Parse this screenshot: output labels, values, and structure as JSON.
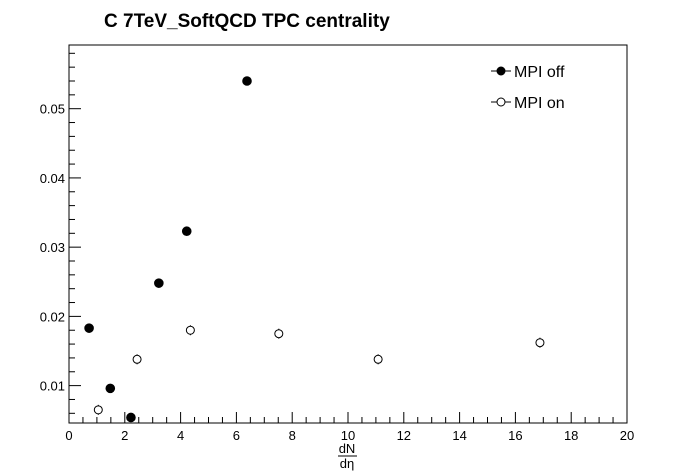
{
  "chart_data": {
    "type": "scatter",
    "title": "C 7TeV_SoftQCD TPC centrality",
    "xlabel_numerator": "dN",
    "xlabel_denominator": "dη",
    "ylabel": "",
    "xlim": [
      0,
      20
    ],
    "ylim": [
      0.0046,
      0.0592
    ],
    "x_ticks": [
      0,
      2,
      4,
      6,
      8,
      10,
      12,
      14,
      16,
      18,
      20
    ],
    "x_tick_labels": [
      "0",
      "2",
      "4",
      "6",
      "8",
      "10",
      "12",
      "14",
      "16",
      "18",
      "20"
    ],
    "y_ticks": [
      0.01,
      0.02,
      0.03,
      0.04,
      0.05
    ],
    "y_tick_labels": [
      "0.01",
      "0.02",
      "0.03",
      "0.04",
      "0.05"
    ],
    "grid": false,
    "legend_position": "top-right",
    "series": [
      {
        "name": "MPI off",
        "marker": "filled-circle",
        "color": "#000000",
        "points": [
          {
            "x": 0.72,
            "y": 0.0183
          },
          {
            "x": 1.48,
            "y": 0.0096
          },
          {
            "x": 2.22,
            "y": 0.0054
          },
          {
            "x": 3.22,
            "y": 0.0248
          },
          {
            "x": 4.22,
            "y": 0.0323
          },
          {
            "x": 6.38,
            "y": 0.054
          }
        ]
      },
      {
        "name": "MPI on",
        "marker": "open-circle",
        "color": "#000000",
        "points": [
          {
            "x": 1.05,
            "y": 0.0065
          },
          {
            "x": 2.44,
            "y": 0.0138
          },
          {
            "x": 4.35,
            "y": 0.018
          },
          {
            "x": 7.52,
            "y": 0.0175
          },
          {
            "x": 11.08,
            "y": 0.0138
          },
          {
            "x": 16.88,
            "y": 0.0162
          }
        ]
      }
    ]
  }
}
